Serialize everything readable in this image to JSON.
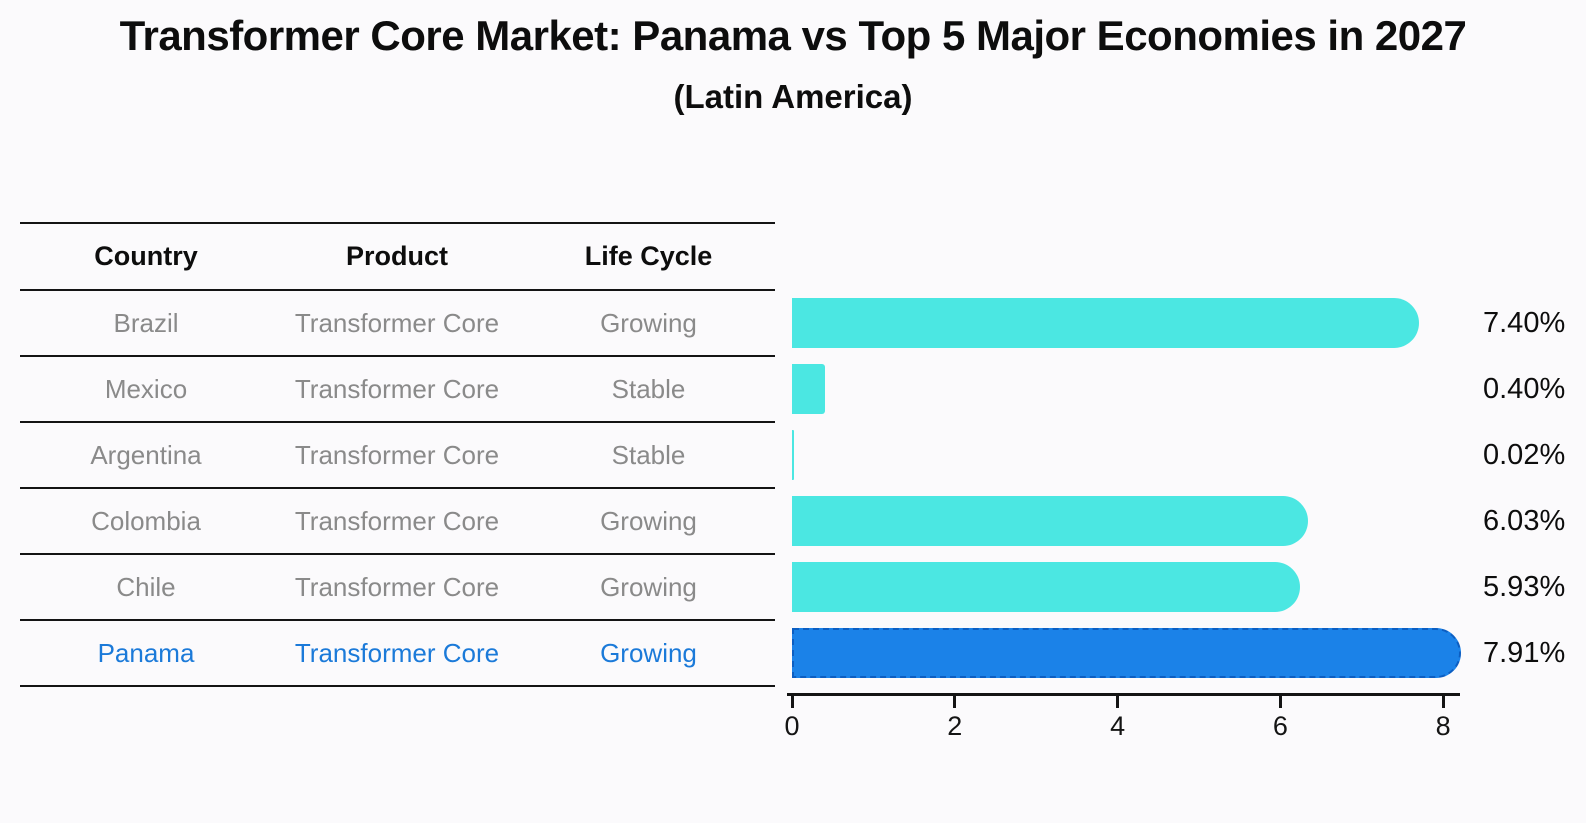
{
  "title": "Transformer Core Market: Panama vs Top 5 Major Economies in 2027",
  "subtitle": "(Latin America)",
  "table": {
    "headers": [
      "Country",
      "Product",
      "Life Cycle"
    ],
    "rows": [
      {
        "country": "Brazil",
        "product": "Transformer Core",
        "life_cycle": "Growing"
      },
      {
        "country": "Mexico",
        "product": "Transformer Core",
        "life_cycle": "Stable"
      },
      {
        "country": "Argentina",
        "product": "Transformer Core",
        "life_cycle": "Stable"
      },
      {
        "country": "Colombia",
        "product": "Transformer Core",
        "life_cycle": "Growing"
      },
      {
        "country": "Chile",
        "product": "Transformer Core",
        "life_cycle": "Growing"
      },
      {
        "country": "Panama",
        "product": "Transformer Core",
        "life_cycle": "Growing"
      }
    ],
    "highlight_row": "Panama"
  },
  "chart_data": {
    "type": "bar",
    "orientation": "horizontal",
    "categories": [
      "Brazil",
      "Mexico",
      "Argentina",
      "Colombia",
      "Chile",
      "Panama"
    ],
    "values": [
      7.4,
      0.4,
      0.02,
      6.03,
      5.93,
      7.91
    ],
    "value_labels": [
      "7.40%",
      "0.40%",
      "0.02%",
      "6.03%",
      "5.93%",
      "7.91%"
    ],
    "x_ticks": [
      "0",
      "2",
      "4",
      "6",
      "8"
    ],
    "xlim": [
      0,
      8.2
    ],
    "grid": false,
    "legend": "none",
    "bar_color": "#4BE7E2",
    "highlight_color": "#1B82E8",
    "highlight_border_color": "#0C5EC2",
    "highlight_index": 5,
    "text_color": "#0D0D0D",
    "muted_text_color": "#8A8A8A",
    "highlight_text_color": "#1B7AD9"
  }
}
